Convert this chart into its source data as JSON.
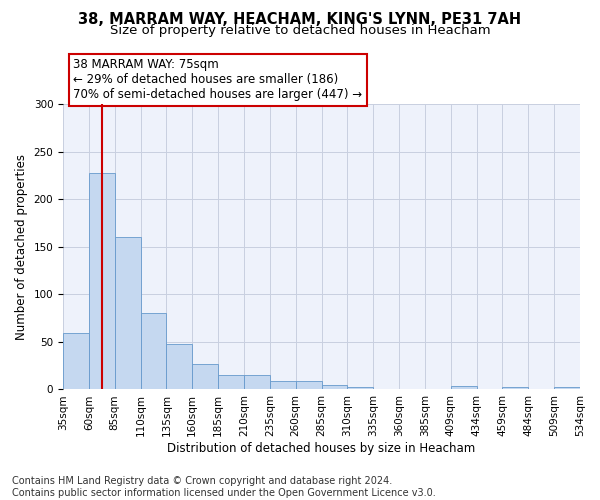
{
  "title_line1": "38, MARRAM WAY, HEACHAM, KING'S LYNN, PE31 7AH",
  "title_line2": "Size of property relative to detached houses in Heacham",
  "xlabel": "Distribution of detached houses by size in Heacham",
  "ylabel": "Number of detached properties",
  "bar_values": [
    59,
    228,
    160,
    80,
    48,
    27,
    15,
    15,
    9,
    9,
    5,
    3,
    1,
    1,
    1,
    4,
    1,
    3,
    1,
    3
  ],
  "categories": [
    "35sqm",
    "60sqm",
    "85sqm",
    "110sqm",
    "135sqm",
    "160sqm",
    "185sqm",
    "210sqm",
    "235sqm",
    "260sqm",
    "285sqm",
    "310sqm",
    "335sqm",
    "360sqm",
    "385sqm",
    "409sqm",
    "434sqm",
    "459sqm",
    "484sqm",
    "509sqm",
    "534sqm"
  ],
  "bar_color": "#c5d8f0",
  "bar_edgecolor": "#6699cc",
  "vline_x": 1.5,
  "vline_color": "#cc0000",
  "annotation_line1": "38 MARRAM WAY: 75sqm",
  "annotation_line2": "← 29% of detached houses are smaller (186)",
  "annotation_line3": "70% of semi-detached houses are larger (447) →",
  "box_edgecolor": "#cc0000",
  "ylim": [
    0,
    300
  ],
  "yticks": [
    0,
    50,
    100,
    150,
    200,
    250,
    300
  ],
  "footnote": "Contains HM Land Registry data © Crown copyright and database right 2024.\nContains public sector information licensed under the Open Government Licence v3.0.",
  "background_color": "#eef2fb",
  "grid_color": "#c8cfe0",
  "title1_fontsize": 10.5,
  "title2_fontsize": 9.5,
  "xlabel_fontsize": 8.5,
  "ylabel_fontsize": 8.5,
  "footnote_fontsize": 7,
  "annotation_fontsize": 8.5,
  "tick_fontsize": 7.5
}
